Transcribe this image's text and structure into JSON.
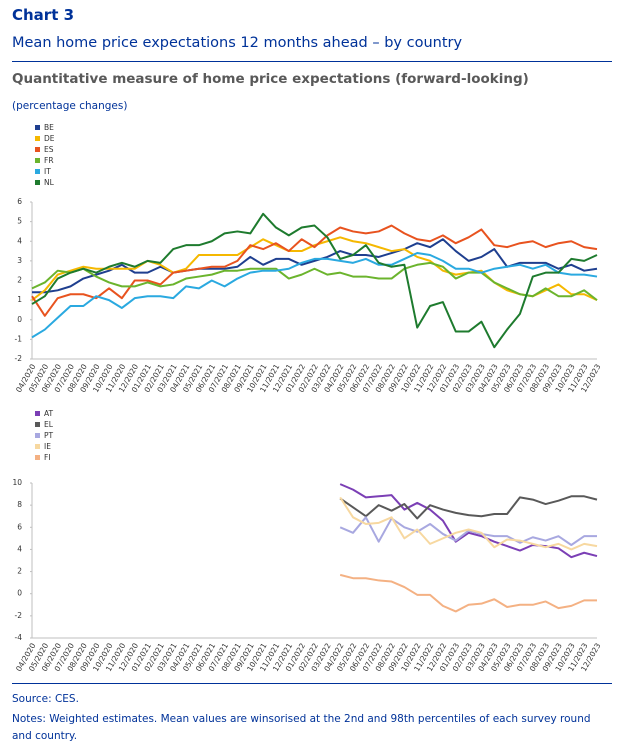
{
  "header": {
    "chart_number": "Chart 3",
    "title": "Mean home price expectations 12 months ahead – by country",
    "subtitle": "Quantitative measure of home price expectations (forward-looking)",
    "unit": "(percentage changes)"
  },
  "chart_data": [
    {
      "type": "line",
      "legend": "top-left",
      "grid": false,
      "categories": [
        "04/2020",
        "05/2020",
        "06/2020",
        "07/2020",
        "08/2020",
        "09/2020",
        "10/2020",
        "11/2020",
        "12/2020",
        "01/2021",
        "02/2021",
        "03/2021",
        "04/2021",
        "05/2021",
        "06/2021",
        "07/2021",
        "08/2021",
        "09/2021",
        "10/2021",
        "11/2021",
        "12/2021",
        "01/2022",
        "02/2022",
        "03/2022",
        "04/2022",
        "05/2022",
        "06/2022",
        "07/2022",
        "08/2022",
        "09/2022",
        "10/2022",
        "11/2022",
        "12/2022",
        "01/2023",
        "02/2023",
        "03/2023",
        "04/2023",
        "05/2023",
        "06/2023",
        "07/2023",
        "08/2023",
        "09/2023",
        "10/2023",
        "11/2023",
        "12/2023"
      ],
      "ylim": [
        -2,
        6
      ],
      "yticks": [
        -2,
        -1,
        0,
        1,
        2,
        3,
        4,
        5,
        6
      ],
      "series": [
        {
          "name": "BE",
          "color": "#1f3f8f",
          "values": [
            1.4,
            1.4,
            1.5,
            1.7,
            2.1,
            2.3,
            2.5,
            2.8,
            2.4,
            2.4,
            2.7,
            2.4,
            2.5,
            2.6,
            2.6,
            2.6,
            2.7,
            3.2,
            2.8,
            3.1,
            3.1,
            2.8,
            3.0,
            3.2,
            3.5,
            3.3,
            3.3,
            3.2,
            3.4,
            3.6,
            3.9,
            3.7,
            4.1,
            3.5,
            3.0,
            3.2,
            3.6,
            2.7,
            2.9,
            2.9,
            2.9,
            2.6,
            2.8,
            2.5,
            2.6
          ]
        },
        {
          "name": "DE",
          "color": "#f5b800",
          "values": [
            1.0,
            1.5,
            2.3,
            2.5,
            2.7,
            2.6,
            2.6,
            2.6,
            2.6,
            3.0,
            2.8,
            2.4,
            2.6,
            3.3,
            3.3,
            3.3,
            3.3,
            3.7,
            4.1,
            3.8,
            3.5,
            3.5,
            3.8,
            4.0,
            4.2,
            4.0,
            3.9,
            3.7,
            3.5,
            3.6,
            3.2,
            3.0,
            2.5,
            2.3,
            2.4,
            2.5,
            1.9,
            1.5,
            1.3,
            1.2,
            1.5,
            1.8,
            1.3,
            1.3,
            1.0
          ]
        },
        {
          "name": "ES",
          "color": "#e8531f",
          "values": [
            1.2,
            0.2,
            1.1,
            1.3,
            1.3,
            1.1,
            1.6,
            1.1,
            2.0,
            2.0,
            1.8,
            2.4,
            2.5,
            2.6,
            2.7,
            2.7,
            3.0,
            3.8,
            3.6,
            3.9,
            3.5,
            4.1,
            3.7,
            4.3,
            4.7,
            4.5,
            4.4,
            4.5,
            4.8,
            4.4,
            4.1,
            4.0,
            4.3,
            3.9,
            4.2,
            4.6,
            3.8,
            3.7,
            3.9,
            4.0,
            3.7,
            3.9,
            4.0,
            3.7,
            3.6
          ]
        },
        {
          "name": "FR",
          "color": "#6bb42d",
          "values": [
            1.6,
            1.9,
            2.5,
            2.4,
            2.6,
            2.2,
            1.9,
            1.7,
            1.7,
            1.9,
            1.7,
            1.8,
            2.1,
            2.2,
            2.3,
            2.5,
            2.5,
            2.6,
            2.6,
            2.6,
            2.1,
            2.3,
            2.6,
            2.3,
            2.4,
            2.2,
            2.2,
            2.1,
            2.1,
            2.6,
            2.8,
            2.9,
            2.7,
            2.1,
            2.4,
            2.4,
            1.9,
            1.6,
            1.3,
            1.2,
            1.6,
            1.2,
            1.2,
            1.5,
            1.0
          ]
        },
        {
          "name": "IT",
          "color": "#2aa9e0",
          "values": [
            -0.9,
            -0.5,
            0.1,
            0.7,
            0.7,
            1.2,
            1.0,
            0.6,
            1.1,
            1.2,
            1.2,
            1.1,
            1.7,
            1.6,
            2.0,
            1.7,
            2.1,
            2.4,
            2.5,
            2.5,
            2.6,
            2.9,
            3.1,
            3.1,
            3.0,
            2.9,
            3.1,
            2.8,
            2.8,
            3.1,
            3.4,
            3.3,
            3.0,
            2.6,
            2.6,
            2.4,
            2.6,
            2.7,
            2.8,
            2.6,
            2.8,
            2.4,
            2.3,
            2.3,
            2.2
          ]
        },
        {
          "name": "NL",
          "color": "#1e7b2e",
          "values": [
            0.8,
            1.2,
            2.1,
            2.4,
            2.6,
            2.4,
            2.7,
            2.9,
            2.7,
            3.0,
            2.9,
            3.6,
            3.8,
            3.8,
            4.0,
            4.4,
            4.5,
            4.4,
            5.4,
            4.7,
            4.3,
            4.7,
            4.8,
            4.2,
            3.1,
            3.3,
            3.8,
            2.9,
            2.7,
            2.8,
            -0.4,
            0.7,
            0.9,
            -0.6,
            -0.6,
            -0.1,
            -1.4,
            -0.5,
            0.3,
            2.2,
            2.4,
            2.4,
            3.1,
            3.0,
            3.3
          ]
        }
      ]
    },
    {
      "type": "line",
      "legend": "top-left",
      "grid": false,
      "categories": [
        "04/2020",
        "05/2020",
        "06/2020",
        "07/2020",
        "08/2020",
        "09/2020",
        "10/2020",
        "11/2020",
        "12/2020",
        "01/2021",
        "02/2021",
        "03/2021",
        "04/2021",
        "05/2021",
        "06/2021",
        "07/2021",
        "08/2021",
        "09/2021",
        "10/2021",
        "11/2021",
        "12/2021",
        "01/2022",
        "02/2022",
        "03/2022",
        "04/2022",
        "05/2022",
        "06/2022",
        "07/2022",
        "08/2022",
        "09/2022",
        "10/2022",
        "11/2022",
        "12/2022",
        "01/2023",
        "02/2023",
        "03/2023",
        "04/2023",
        "05/2023",
        "06/2023",
        "07/2023",
        "08/2023",
        "09/2023",
        "10/2023",
        "11/2023",
        "12/2023"
      ],
      "ylim": [
        -4,
        10
      ],
      "yticks": [
        -4,
        -2,
        0,
        2,
        4,
        6,
        8,
        10
      ],
      "series": [
        {
          "name": "AT",
          "color": "#7b3fb5",
          "values": [
            null,
            null,
            null,
            null,
            null,
            null,
            null,
            null,
            null,
            null,
            null,
            null,
            null,
            null,
            null,
            null,
            null,
            null,
            null,
            null,
            null,
            null,
            null,
            null,
            9.9,
            9.4,
            8.7,
            8.8,
            8.9,
            7.6,
            8.2,
            7.6,
            6.6,
            4.7,
            5.5,
            5.2,
            4.7,
            4.3,
            3.9,
            4.4,
            4.3,
            4.1,
            3.3,
            3.7,
            3.4
          ]
        },
        {
          "name": "EL",
          "color": "#595959",
          "values": [
            null,
            null,
            null,
            null,
            null,
            null,
            null,
            null,
            null,
            null,
            null,
            null,
            null,
            null,
            null,
            null,
            null,
            null,
            null,
            null,
            null,
            null,
            null,
            null,
            8.6,
            7.8,
            7.0,
            8.0,
            7.5,
            8.1,
            6.8,
            8.0,
            7.6,
            7.3,
            7.1,
            7.0,
            7.2,
            7.2,
            8.7,
            8.5,
            8.1,
            8.4,
            8.8,
            8.8,
            8.5
          ]
        },
        {
          "name": "PT",
          "color": "#a8a8e0",
          "values": [
            null,
            null,
            null,
            null,
            null,
            null,
            null,
            null,
            null,
            null,
            null,
            null,
            null,
            null,
            null,
            null,
            null,
            null,
            null,
            null,
            null,
            null,
            null,
            null,
            6.0,
            5.5,
            6.9,
            4.7,
            6.8,
            6.0,
            5.6,
            6.3,
            5.4,
            4.8,
            5.7,
            5.4,
            5.2,
            5.2,
            4.6,
            5.1,
            4.8,
            5.2,
            4.4,
            5.2,
            5.2
          ]
        },
        {
          "name": "IE",
          "color": "#f7d8a0",
          "values": [
            null,
            null,
            null,
            null,
            null,
            null,
            null,
            null,
            null,
            null,
            null,
            null,
            null,
            null,
            null,
            null,
            null,
            null,
            null,
            null,
            null,
            null,
            null,
            null,
            8.7,
            6.9,
            6.3,
            6.4,
            6.9,
            5.0,
            5.8,
            4.5,
            5.0,
            5.5,
            5.8,
            5.5,
            4.2,
            4.9,
            4.8,
            4.5,
            4.2,
            4.5,
            4.0,
            4.5,
            4.3
          ]
        },
        {
          "name": "FI",
          "color": "#f4b183",
          "values": [
            null,
            null,
            null,
            null,
            null,
            null,
            null,
            null,
            null,
            null,
            null,
            null,
            null,
            null,
            null,
            null,
            null,
            null,
            null,
            null,
            null,
            null,
            null,
            null,
            1.7,
            1.4,
            1.4,
            1.2,
            1.1,
            0.6,
            -0.1,
            -0.1,
            -1.1,
            -1.6,
            -1.0,
            -0.9,
            -0.5,
            -1.2,
            -1.0,
            -1.0,
            -0.7,
            -1.3,
            -1.1,
            -0.6,
            -0.6
          ]
        }
      ]
    }
  ],
  "footer": {
    "source": "Source: CES.",
    "notes": "Notes: Weighted estimates. Mean values are winsorised at the 2nd and 98th percentiles of each survey round and country."
  }
}
